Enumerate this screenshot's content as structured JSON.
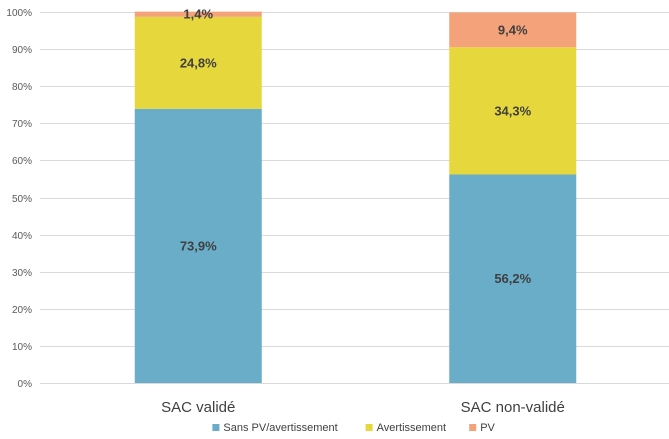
{
  "chart_data": {
    "type": "bar",
    "stacked": true,
    "categories": [
      "SAC validé",
      "SAC non-validé"
    ],
    "series": [
      {
        "name": "Sans PV/avertissement",
        "color": "#6aadc8",
        "values": [
          73.9,
          56.2
        ],
        "labels": [
          "73,9%",
          "56,2%"
        ]
      },
      {
        "name": "Avertissement",
        "color": "#e6d73c",
        "values": [
          24.8,
          34.3
        ],
        "labels": [
          "24,8%",
          "34,3%"
        ]
      },
      {
        "name": "PV",
        "color": "#f4a27a",
        "values": [
          1.4,
          9.4
        ],
        "labels": [
          "1,4%",
          "9,4%"
        ]
      }
    ],
    "ylim": [
      0,
      100
    ],
    "yticks": [
      "0%",
      "10%",
      "20%",
      "30%",
      "40%",
      "50%",
      "60%",
      "70%",
      "80%",
      "90%",
      "100%"
    ],
    "grid": true,
    "legend_position": "bottom"
  }
}
